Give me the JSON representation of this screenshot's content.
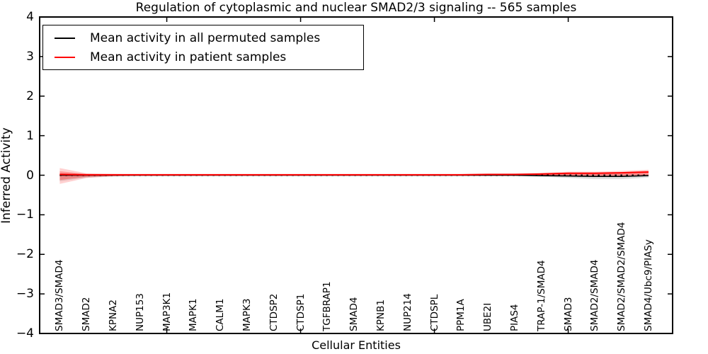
{
  "figure": {
    "title": "Regulation of cytoplasmic and nuclear SMAD2/3 signaling -- 565 samples",
    "xlabel": "Cellular Entities",
    "ylabel": "Inferred Activity"
  },
  "legend": {
    "items": [
      {
        "label": "Mean activity in all permuted samples",
        "color": "#000000"
      },
      {
        "label": "Mean activity in patient samples",
        "color": "#ff0000"
      }
    ]
  },
  "chart_data": {
    "type": "line",
    "title": "Regulation of cytoplasmic and nuclear SMAD2/3 signaling -- 565 samples",
    "xlabel": "Cellular Entities",
    "ylabel": "Inferred Activity",
    "ylim": [
      -4,
      4
    ],
    "xlim": [
      0.25,
      23.9
    ],
    "yticks": [
      4,
      3,
      2,
      1,
      0,
      -1,
      -2,
      -3,
      -4
    ],
    "ytick_labels": [
      "4",
      "3",
      "2",
      "1",
      "0",
      "−1",
      "−2",
      "−3",
      "−4"
    ],
    "xticks_unlabeled": [
      5,
      10,
      15,
      20
    ],
    "grid": false,
    "legend_position": "upper left",
    "categories": [
      "SMAD3/SMAD4",
      "SMAD2",
      "KPNA2",
      "NUP153",
      "MAP3K1",
      "MAPK1",
      "CALM1",
      "MAPK3",
      "CTDSP2",
      "CTDSP1",
      "TGFBRAP1",
      "SMAD4",
      "KPNB1",
      "NUP214",
      "CTDSPL",
      "PPM1A",
      "UBE2I",
      "PIAS4",
      "TRAP-1/SMAD4",
      "SMAD3",
      "SMAD2/SMAD4",
      "SMAD2/SMAD2/SMAD4",
      "SMAD4/Ubc9/PIASy"
    ],
    "x": [
      1,
      2,
      3,
      4,
      5,
      6,
      7,
      8,
      9,
      10,
      11,
      12,
      13,
      14,
      15,
      16,
      17,
      18,
      19,
      20,
      21,
      22,
      23
    ],
    "series": [
      {
        "name": "zero-baseline",
        "color": "#000000",
        "style": "dotted",
        "width": 2,
        "values": [
          0,
          0,
          0,
          0,
          0,
          0,
          0,
          0,
          0,
          0,
          0,
          0,
          0,
          0,
          0,
          0,
          0,
          0,
          0,
          0,
          0,
          0,
          0
        ]
      },
      {
        "name": "Mean activity in all permuted samples",
        "color": "#000000",
        "style": "solid",
        "width": 1.6,
        "values": [
          0,
          0,
          0,
          0,
          0,
          0,
          0,
          0,
          0,
          0,
          0,
          0,
          0,
          0,
          0,
          0,
          0,
          0,
          -0.01,
          -0.02,
          -0.03,
          -0.03,
          -0.01
        ]
      },
      {
        "name": "Mean activity in patient samples",
        "color": "#ff0000",
        "style": "solid",
        "width": 2,
        "values": [
          0.02,
          0.01,
          0.01,
          0.01,
          0.01,
          0.01,
          0.01,
          0.01,
          0.01,
          0.01,
          0.01,
          0.01,
          0.01,
          0.01,
          0.01,
          0.01,
          0.02,
          0.02,
          0.03,
          0.05,
          0.05,
          0.06,
          0.08
        ]
      }
    ],
    "bands": [
      {
        "name": "permuted-std-band",
        "color": "rgba(0,0,0,0.12)",
        "upper": [
          0.05,
          0.02,
          0.01,
          0.01,
          0.01,
          0.01,
          0.01,
          0.01,
          0.01,
          0.01,
          0.01,
          0.01,
          0.01,
          0.01,
          0.01,
          0.01,
          0.01,
          0.02,
          0.02,
          0.03,
          0.03,
          0.03,
          0.03
        ],
        "lower": [
          -0.15,
          -0.06,
          -0.02,
          -0.01,
          -0.01,
          -0.01,
          -0.01,
          -0.01,
          -0.01,
          -0.01,
          -0.01,
          -0.01,
          -0.01,
          -0.01,
          -0.01,
          -0.01,
          -0.02,
          -0.02,
          -0.04,
          -0.07,
          -0.1,
          -0.1,
          -0.06
        ]
      },
      {
        "name": "patient-std-outer-band",
        "color": "rgba(255,0,0,0.18)",
        "upper": [
          0.18,
          0.05,
          0.03,
          0.02,
          0.02,
          0.02,
          0.02,
          0.02,
          0.02,
          0.02,
          0.02,
          0.02,
          0.02,
          0.02,
          0.02,
          0.02,
          0.03,
          0.04,
          0.06,
          0.09,
          0.09,
          0.11,
          0.14
        ],
        "lower": [
          -0.22,
          -0.07,
          -0.03,
          -0.01,
          -0.01,
          -0.01,
          -0.01,
          -0.01,
          -0.01,
          -0.01,
          -0.01,
          -0.01,
          -0.01,
          -0.01,
          -0.01,
          -0.01,
          -0.01,
          -0.01,
          -0.01,
          -0.02,
          -0.02,
          -0.02,
          -0.01
        ]
      },
      {
        "name": "patient-std-inner-band",
        "color": "rgba(255,0,0,0.28)",
        "upper": [
          0.1,
          0.03,
          0.02,
          0.02,
          0.02,
          0.02,
          0.02,
          0.02,
          0.02,
          0.02,
          0.02,
          0.02,
          0.02,
          0.02,
          0.02,
          0.02,
          0.02,
          0.03,
          0.04,
          0.07,
          0.07,
          0.08,
          0.11
        ],
        "lower": [
          -0.12,
          -0.04,
          -0.02,
          -0.01,
          -0.01,
          -0.01,
          -0.01,
          -0.01,
          -0.01,
          -0.01,
          -0.01,
          -0.01,
          -0.01,
          -0.01,
          -0.01,
          -0.01,
          -0.01,
          -0.01,
          -0.01,
          -0.01,
          -0.01,
          -0.01,
          0.0
        ]
      }
    ]
  }
}
